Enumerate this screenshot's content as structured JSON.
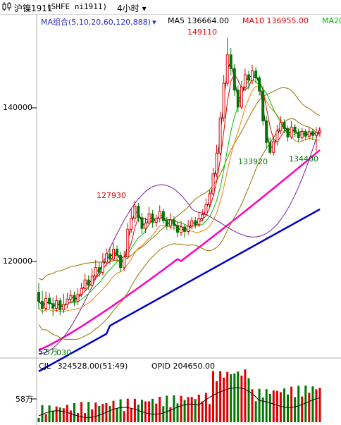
{
  "title_bar": {
    "instrument_name": "沪镍1911",
    "code": "(SHFE ni1911)",
    "period": "4小时",
    "period_dropdown_icon": "chevron-down-icon",
    "chart_icon": "candlestick-icon"
  },
  "ma_legend": {
    "group_label": "MA组合(5,10,20,60,120,888)",
    "dropdown_icon": "chevron-down-icon",
    "ma5": "MA5  136664.00",
    "ma10": "MA10  136955.00",
    "ma20": "MA20"
  },
  "colors": {
    "up": "#e00000",
    "down": "#007800",
    "ma5": "#000000",
    "ma10": "#e00000",
    "ma20": "#00c000",
    "ma60": "#f08000",
    "ma120": "#ff00c0",
    "ma888": "#0000c8",
    "bollinger": "#8b7500",
    "purple": "#7a1f9a",
    "price_tick_line": "#d0d0d0"
  },
  "price_axis": {
    "labels": [
      "140000",
      "120000"
    ]
  },
  "annotations": {
    "high_1": "149110",
    "high_2": "127930",
    "low_1": "133920",
    "low_2": "134400",
    "low_3": "52",
    "low_4": "5万",
    "low_5": "030"
  },
  "volume_panel": {
    "cjl": "CJL",
    "cjl_value": "324528.00(51:49)",
    "opid": "OPID  204650.00",
    "axis_label": "58万"
  },
  "chart_data": {
    "type": "candlestick",
    "title": "沪镍1911",
    "ylim": [
      107000,
      153000
    ],
    "y_ticks": [
      120000,
      140000
    ],
    "candles": [
      [
        116000,
        114800,
        117200,
        113800
      ],
      [
        114800,
        113900,
        116200,
        113200
      ],
      [
        113900,
        115200,
        116100,
        113500
      ],
      [
        115200,
        114500,
        115900,
        113800
      ],
      [
        114500,
        113900,
        115300,
        112900
      ],
      [
        113900,
        114900,
        115600,
        113400
      ],
      [
        114900,
        113700,
        115300,
        113000
      ],
      [
        113700,
        114400,
        115800,
        113300
      ],
      [
        114400,
        115100,
        115900,
        113900
      ],
      [
        115100,
        115600,
        116300,
        114600
      ],
      [
        115600,
        114800,
        116100,
        114200
      ],
      [
        114800,
        115700,
        116500,
        114300
      ],
      [
        115700,
        116500,
        117200,
        115400
      ],
      [
        116500,
        117600,
        118400,
        116200
      ],
      [
        117600,
        116900,
        118200,
        116300
      ],
      [
        116900,
        118100,
        119100,
        116600
      ],
      [
        118100,
        119200,
        120200,
        117700
      ],
      [
        119200,
        118600,
        120000,
        118000
      ],
      [
        118600,
        119900,
        121100,
        118200
      ],
      [
        119900,
        121000,
        121700,
        119400
      ],
      [
        121000,
        120300,
        121900,
        119600
      ],
      [
        120300,
        121600,
        122400,
        120000
      ],
      [
        121600,
        120800,
        122100,
        119900
      ],
      [
        120800,
        119200,
        121300,
        118600
      ],
      [
        119200,
        120600,
        121400,
        118800
      ],
      [
        120600,
        124200,
        125000,
        120300
      ],
      [
        124200,
        125600,
        126900,
        123700
      ],
      [
        125600,
        127200,
        127930,
        125100
      ],
      [
        127200,
        125700,
        127600,
        125100
      ],
      [
        125700,
        124300,
        126300,
        123600
      ],
      [
        124300,
        125000,
        125700,
        123700
      ],
      [
        125000,
        126200,
        127100,
        124600
      ],
      [
        126200,
        125100,
        126700,
        124400
      ],
      [
        125100,
        125600,
        126100,
        124500
      ],
      [
        125600,
        126500,
        127300,
        125100
      ],
      [
        126500,
        125300,
        126900,
        124900
      ],
      [
        125300,
        124600,
        125800,
        124100
      ],
      [
        124600,
        125400,
        126300,
        124200
      ],
      [
        125400,
        124700,
        125900,
        124100
      ],
      [
        124700,
        123800,
        125200,
        123200
      ],
      [
        123800,
        124500,
        125300,
        123300
      ],
      [
        124500,
        123900,
        124900,
        123100
      ],
      [
        123900,
        124600,
        125400,
        123500
      ],
      [
        124600,
        125300,
        125800,
        124200
      ],
      [
        125300,
        124800,
        125800,
        124300
      ],
      [
        124800,
        125600,
        126400,
        124500
      ],
      [
        125600,
        126100,
        126800,
        125200
      ],
      [
        126100,
        127400,
        128200,
        125900
      ],
      [
        127400,
        128800,
        129300,
        127000
      ],
      [
        128800,
        131400,
        132200,
        128400
      ],
      [
        131400,
        134100,
        135200,
        131000
      ],
      [
        134100,
        138700,
        139500,
        133800
      ],
      [
        138700,
        143200,
        144300,
        138200
      ],
      [
        143200,
        146900,
        149110,
        142800
      ],
      [
        146900,
        145100,
        147800,
        144200
      ],
      [
        145100,
        142300,
        145700,
        141600
      ],
      [
        142300,
        140100,
        142900,
        139400
      ],
      [
        140100,
        142700,
        143500,
        139800
      ],
      [
        142700,
        144300,
        145100,
        142200
      ],
      [
        144300,
        143600,
        144800,
        142400
      ],
      [
        143600,
        144800,
        145600,
        143100
      ],
      [
        144800,
        143900,
        145300,
        143200
      ],
      [
        143900,
        142200,
        144200,
        141600
      ],
      [
        142200,
        138300,
        142800,
        137700
      ],
      [
        138300,
        135500,
        138900,
        134700
      ],
      [
        135500,
        134200,
        136100,
        133920
      ],
      [
        134200,
        135600,
        136300,
        133800
      ],
      [
        135600,
        137000,
        137800,
        135100
      ],
      [
        137000,
        138100,
        138900,
        136600
      ],
      [
        138100,
        137300,
        138500,
        136700
      ],
      [
        137300,
        136200,
        137700,
        135600
      ],
      [
        136200,
        137500,
        138300,
        135900
      ],
      [
        137500,
        136800,
        137900,
        136200
      ],
      [
        136800,
        136100,
        137300,
        135500
      ],
      [
        136100,
        136900,
        137400,
        135700
      ],
      [
        136900,
        136300,
        137200,
        135800
      ],
      [
        136300,
        136900,
        137500,
        135900
      ],
      [
        136900,
        136400,
        137300,
        135800
      ],
      [
        136400,
        136800,
        137500,
        134400
      ],
      [
        136800,
        137000,
        137400,
        136200
      ]
    ],
    "volume_axis_label": "58万"
  }
}
